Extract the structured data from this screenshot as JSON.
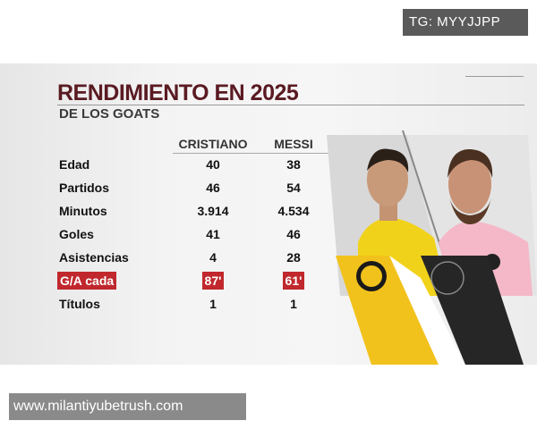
{
  "watermark_top": "TG: MYYJJPP",
  "watermark_bottom": "www.milantiyubetrush.com",
  "graphic": {
    "title": "RENDIMIENTO EN 2025",
    "subtitle": "DE LOS GOATS",
    "columns": [
      "CRISTIANO",
      "MESSI"
    ],
    "rows": [
      {
        "label": "Edad",
        "values": [
          "40",
          "38"
        ]
      },
      {
        "label": "Partidos",
        "values": [
          "46",
          "54"
        ]
      },
      {
        "label": "Minutos",
        "values": [
          "3.914",
          "4.534"
        ]
      },
      {
        "label": "Goles",
        "values": [
          "41",
          "46"
        ]
      },
      {
        "label": "Asistencias",
        "values": [
          "4",
          "28"
        ]
      },
      {
        "label": "G/A cada",
        "values": [
          "87'",
          "61'"
        ],
        "highlighted": true
      },
      {
        "label": "Títulos",
        "values": [
          "1",
          "1"
        ]
      }
    ],
    "colors": {
      "title": "#5a1a22",
      "highlight": "#c0282d",
      "al_nassr": "#f2c a1c",
      "inter_miami_pink": "#f4b8c8"
    }
  }
}
